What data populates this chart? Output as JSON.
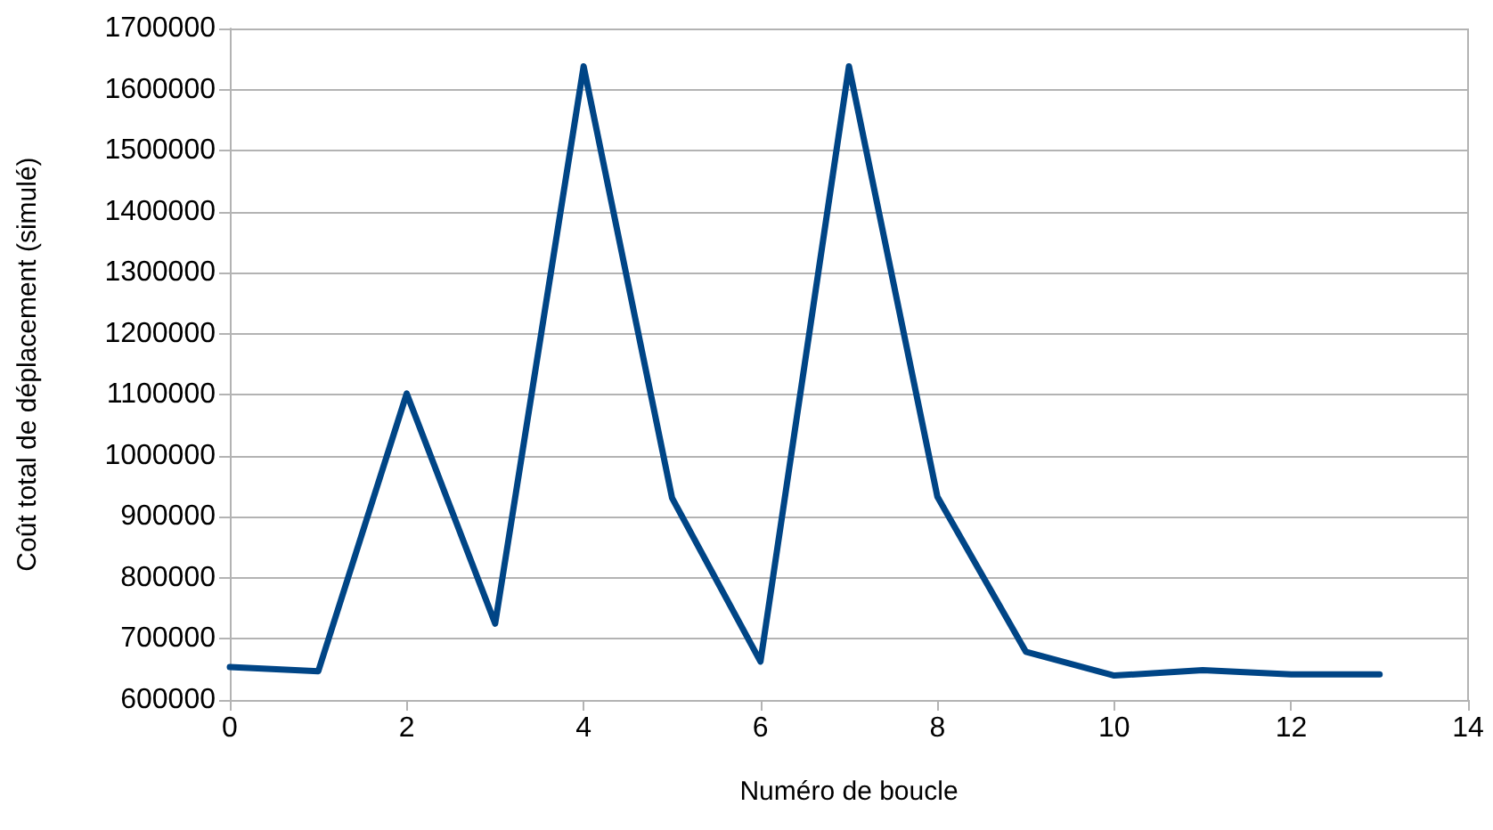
{
  "chart_data": {
    "type": "line",
    "xlabel": "Numéro de boucle",
    "ylabel": "Coût total de déplacement (simulé)",
    "x": [
      0,
      1,
      2,
      3,
      4,
      5,
      6,
      7,
      8,
      9,
      10,
      11,
      12,
      13
    ],
    "series": [
      {
        "color": "#004586",
        "values": [
          654000,
          647000,
          1102000,
          725000,
          1638000,
          931000,
          663000,
          1638000,
          933000,
          679000,
          640000,
          649000,
          642000,
          642000
        ]
      }
    ],
    "xlim": [
      0,
      14
    ],
    "xticks": [
      0,
      2,
      4,
      6,
      8,
      10,
      12,
      14
    ],
    "ylim": [
      600000,
      1700000
    ],
    "yticks": [
      600000,
      700000,
      800000,
      900000,
      1000000,
      1100000,
      1200000,
      1300000,
      1400000,
      1500000,
      1600000,
      1700000
    ],
    "grid": "y",
    "marker": "none",
    "line_style": "solid"
  }
}
